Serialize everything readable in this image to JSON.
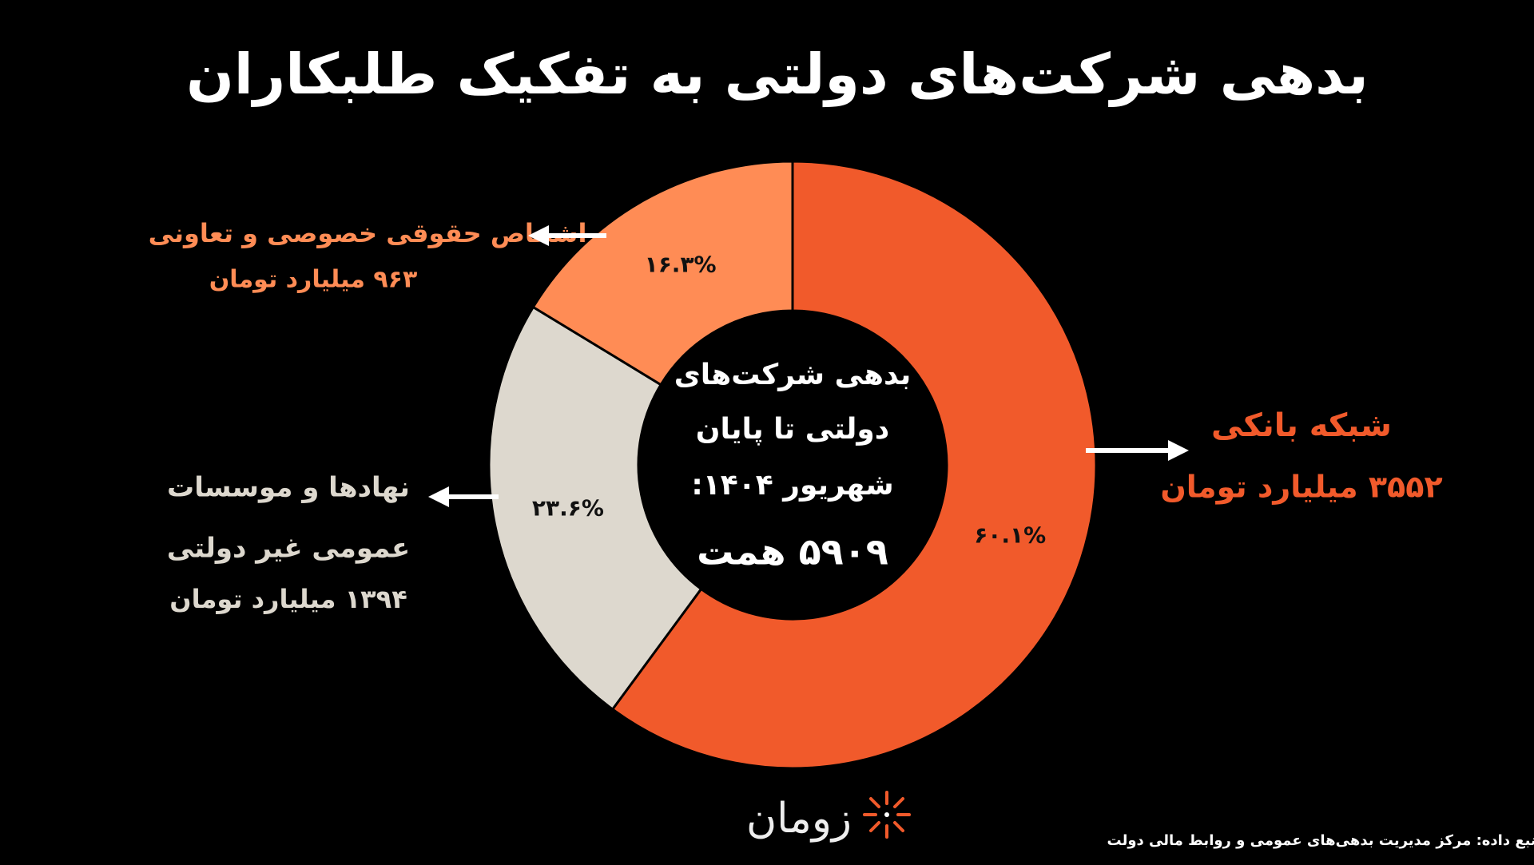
{
  "chart_data": {
    "type": "pie",
    "title": "بدهی شرکت‌های دولتی به تفکیک طلبکاران",
    "values": [
      60.1,
      23.6,
      16.3
    ],
    "value_labels": [
      "۶۰.۱%",
      "۲۳.۶%",
      "۱۶.۳%"
    ],
    "colors": [
      "#f15a2b",
      "#ddd8ce",
      "#ff8c55"
    ],
    "annotations": [
      {
        "lines": [
          "شبکه بانکی"
        ],
        "amount": "۳۵۵۲ میلیارد تومان"
      },
      {
        "lines": [
          "نهادها و موسسات",
          "عمومی غیر دولتی"
        ],
        "amount": "۱۳۹۴ میلیارد تومان"
      },
      {
        "lines": [
          "اشخاص حقوقی خصوصی و تعاونی"
        ],
        "amount": "۹۶۳ میلیارد تومان"
      }
    ],
    "center_text": [
      "بدهی شرکت‌های",
      "دولتی تا پایان",
      "شهریور ۱۴۰۴:",
      "۵۹۰۹ همت"
    ],
    "logo": "زومان",
    "source": "منبع داده: مرکز مدیریت بدهی‌های عمومی و روابط مالی دولت"
  }
}
